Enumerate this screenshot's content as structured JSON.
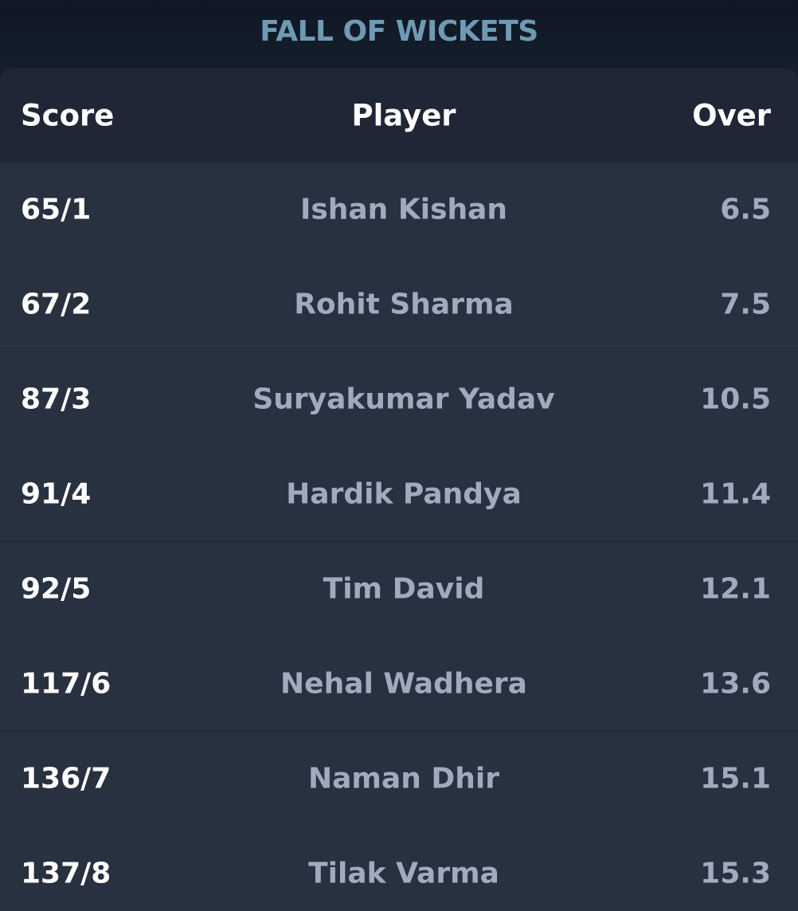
{
  "header": {
    "title": "FALL OF WICKETS"
  },
  "table": {
    "columns": {
      "score": "Score",
      "player": "Player",
      "over": "Over"
    },
    "rows": [
      {
        "score": "65/1",
        "player": "Ishan Kishan",
        "over": "6.5"
      },
      {
        "score": "67/2",
        "player": "Rohit Sharma",
        "over": "7.5"
      },
      {
        "score": "87/3",
        "player": "Suryakumar Yadav",
        "over": "10.5"
      },
      {
        "score": "91/4",
        "player": "Hardik Pandya",
        "over": "11.4"
      },
      {
        "score": "92/5",
        "player": "Tim David",
        "over": "12.1"
      },
      {
        "score": "117/6",
        "player": "Nehal Wadhera",
        "over": "13.6"
      },
      {
        "score": "136/7",
        "player": "Naman Dhir",
        "over": "15.1"
      },
      {
        "score": "137/8",
        "player": "Tilak Varma",
        "over": "15.3"
      }
    ]
  },
  "colors": {
    "title": "#6e9ab3",
    "background": "#151e2c",
    "card": "#283140",
    "header_row": "#1f2736",
    "muted_text": "#a1abbe"
  }
}
